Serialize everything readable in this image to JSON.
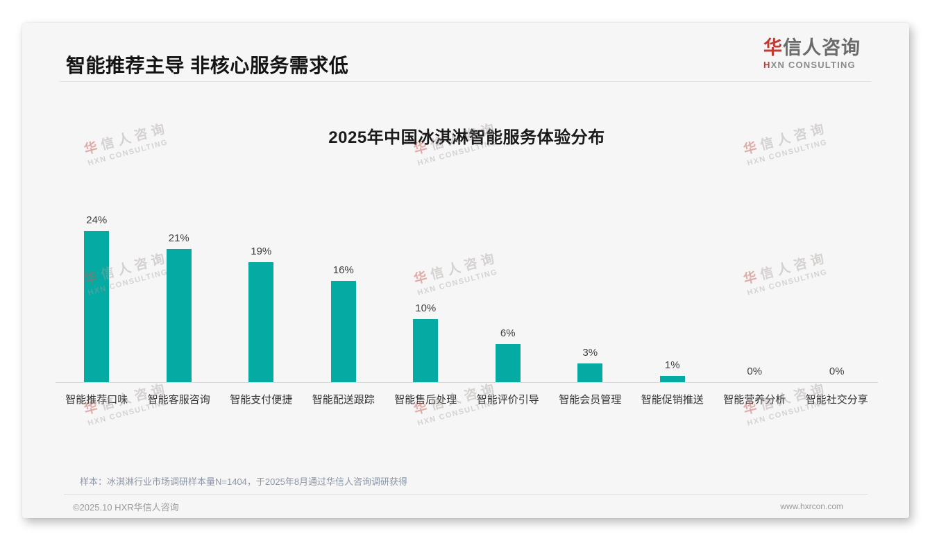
{
  "header": {
    "title": "智能推荐主导 非核心服务需求低"
  },
  "logo": {
    "cn_accent": "华",
    "cn_rest": "信人咨询",
    "en_accent": "H",
    "en_rest": "XN CONSULTING"
  },
  "chart_data": {
    "type": "bar",
    "title": "2025年中国冰淇淋智能服务体验分布",
    "categories": [
      "智能推荐口味",
      "智能客服咨询",
      "智能支付便捷",
      "智能配送跟踪",
      "智能售后处理",
      "智能评价引导",
      "智能会员管理",
      "智能促销推送",
      "智能营养分析",
      "智能社交分享"
    ],
    "values": [
      24,
      21,
      19,
      16,
      10,
      6,
      3,
      1,
      0,
      0
    ],
    "value_labels": [
      "24%",
      "21%",
      "19%",
      "16%",
      "10%",
      "6%",
      "3%",
      "1%",
      "0%",
      "0%"
    ],
    "unit": "%",
    "ylim": [
      0,
      26
    ],
    "grid": false,
    "legend": false,
    "bar_color": "#05aba3"
  },
  "watermark": {
    "line1_accent": "华",
    "line1_rest": "信人咨询",
    "line2": "HXN CONSULTING"
  },
  "notes": {
    "sample": "样本：冰淇淋行业市场调研样本量N=1404，于2025年8月通过华信人咨询调研获得"
  },
  "footer": {
    "copyright": "©2025.10 HXR华信人咨询",
    "website": "www.hxrcon.com"
  },
  "colors": {
    "bar_teal": "#05aba3",
    "accent_red": "#c23b32",
    "title_dark": "#141414",
    "note_gray_blue": "#8b95a6",
    "footer_gray": "#9a9a9a",
    "card_bg": "#f6f6f6"
  }
}
